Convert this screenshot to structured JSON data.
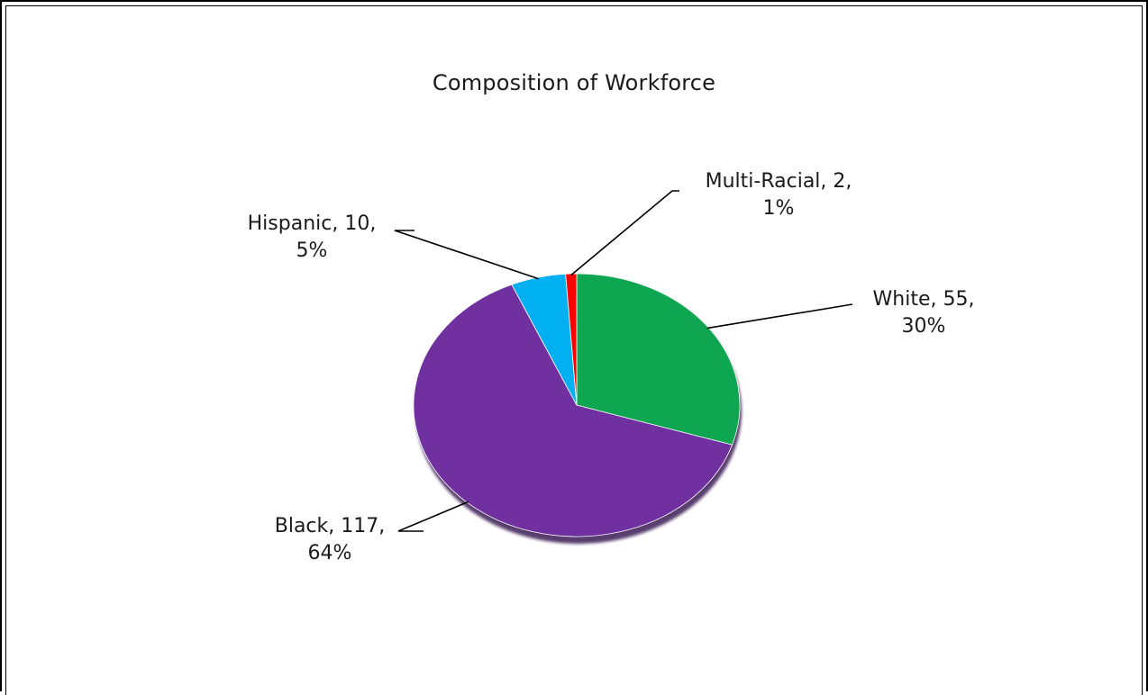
{
  "chart_data": {
    "type": "pie",
    "title": "Composition of Workforce",
    "slices": [
      {
        "label": "White",
        "value": 55,
        "percent": "30%",
        "color": "#0fa651",
        "text_line1": "White, 55,",
        "text_line2": "30%"
      },
      {
        "label": "Black",
        "value": 117,
        "percent": "64%",
        "color": "#7030a0",
        "text_line1": "Black, 117,",
        "text_line2": "64%"
      },
      {
        "label": "Hispanic",
        "value": 10,
        "percent": "5%",
        "color": "#00b0f0",
        "text_line1": "Hispanic, 10,",
        "text_line2": "5%"
      },
      {
        "label": "Multi-Racial",
        "value": 2,
        "percent": "1%",
        "color": "#ff0000",
        "text_line1": "Multi-Racial, 2,",
        "text_line2": "1%"
      }
    ],
    "start_angle": "top",
    "direction": "clockwise",
    "legend": "none",
    "data_labels": "outside-with-leader-lines"
  }
}
